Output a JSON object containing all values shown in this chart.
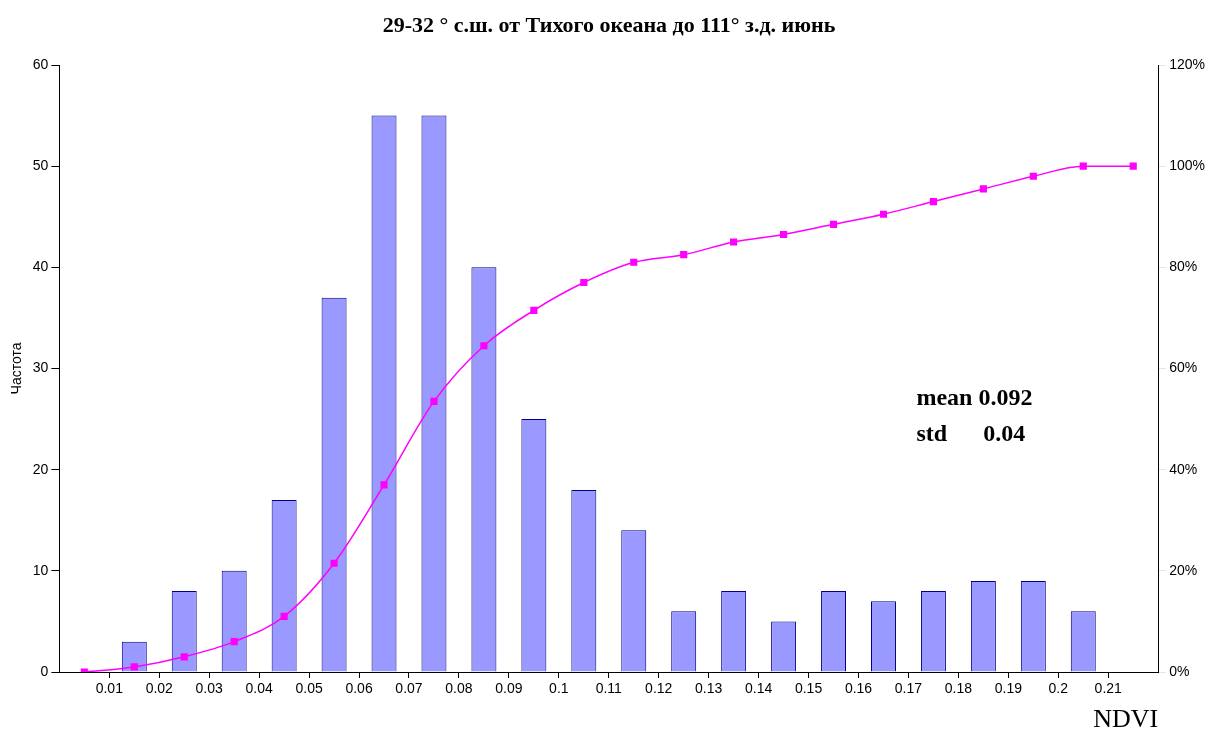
{
  "chart_data": {
    "type": "bar",
    "title": "29-32 ° с.ш. от Тихого океана до 111° з.д. июнь",
    "xlabel": "NDVI",
    "ylabel": "Частота",
    "x": [
      0.015,
      0.025,
      0.035,
      0.045,
      0.055,
      0.065,
      0.075,
      0.085,
      0.095,
      0.105,
      0.115,
      0.125,
      0.135,
      0.145,
      0.155,
      0.165,
      0.175,
      0.185,
      0.195,
      0.205,
      0.215
    ],
    "values": [
      3,
      8,
      10,
      17,
      37,
      55,
      55,
      40,
      25,
      18,
      14,
      6,
      8,
      5,
      8,
      7,
      8,
      9,
      9,
      6,
      0
    ],
    "color": "#9999ff",
    "series": [
      {
        "type": "line",
        "axis": "y2",
        "color": "#ff00ff",
        "x": [
          0.005,
          0.015,
          0.025,
          0.035,
          0.045,
          0.055,
          0.065,
          0.075,
          0.085,
          0.095,
          0.105,
          0.115,
          0.125,
          0.135,
          0.145,
          0.155,
          0.165,
          0.175,
          0.185,
          0.195,
          0.205,
          0.215
        ],
        "values": [
          0,
          1,
          3,
          6,
          11,
          21.5,
          37,
          53.5,
          64.5,
          71.5,
          77,
          81,
          82.5,
          85,
          86.5,
          88.5,
          90.5,
          93,
          95.5,
          98,
          100,
          100
        ]
      }
    ],
    "xlim": [
      0,
      0.22
    ],
    "xticks": [
      0.01,
      0.02,
      0.03,
      0.04,
      0.05,
      0.06,
      0.07,
      0.08,
      0.09,
      0.1,
      0.11,
      0.12,
      0.13,
      0.14,
      0.15,
      0.16,
      0.17,
      0.18,
      0.19,
      0.2,
      0.21
    ],
    "ylim": [
      0,
      60
    ],
    "yticks": [
      0,
      10,
      20,
      30,
      40,
      50,
      60
    ],
    "y2lim": [
      0,
      120
    ],
    "y2ticks": [
      {
        "value": 0,
        "label": "0%"
      },
      {
        "value": 20,
        "label": "20%"
      },
      {
        "value": 40,
        "label": "40%"
      },
      {
        "value": 60,
        "label": "60%"
      },
      {
        "value": 80,
        "label": "80%"
      },
      {
        "value": 100,
        "label": "100%"
      },
      {
        "value": 120,
        "label": "120%"
      }
    ],
    "marker": "square",
    "grid": false,
    "legend": false,
    "annotations": [
      "mean 0.092",
      "std      0.04"
    ]
  }
}
